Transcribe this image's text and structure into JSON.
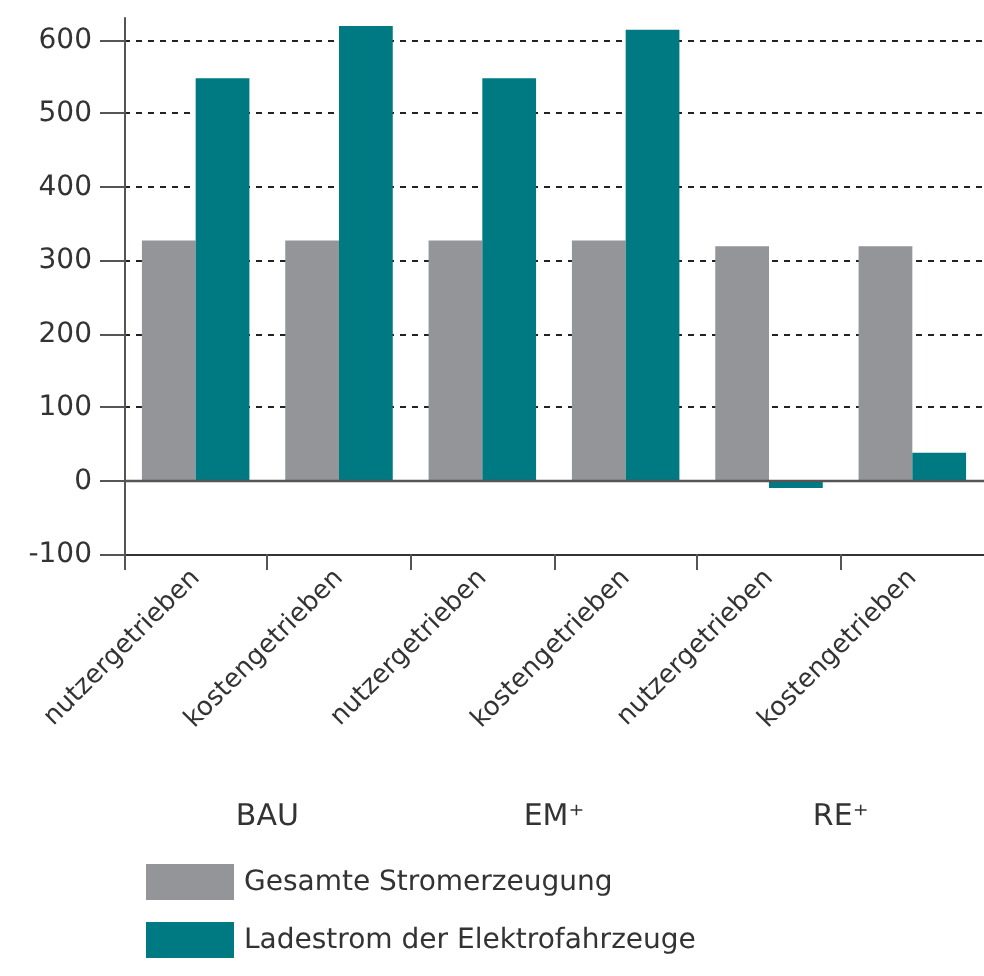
{
  "chart_data": {
    "type": "bar",
    "categories": [
      "nutzergetrieben",
      "kostengetrieben",
      "nutzergetrieben",
      "kostengetrieben",
      "nutzergetrieben",
      "kostengetrieben"
    ],
    "series": [
      {
        "name": "Gesamte Stromerzeugung",
        "color": "#939598",
        "values": [
          327,
          327,
          327,
          327,
          319,
          319
        ]
      },
      {
        "name": "Ladestrom der Elektrofahrzeuge",
        "color": "#007a82",
        "values": [
          548,
          619,
          548,
          614,
          -10,
          38
        ]
      }
    ],
    "ylim": [
      -100,
      630
    ],
    "yticks": [
      -100,
      0,
      100,
      200,
      300,
      400,
      500,
      600
    ],
    "grid": "y",
    "legend": "bottom",
    "ref_lines": [
      {
        "axis": "y",
        "value": 0
      }
    ],
    "annotations": [
      "BAU",
      "EM⁺",
      "RE⁺"
    ]
  }
}
